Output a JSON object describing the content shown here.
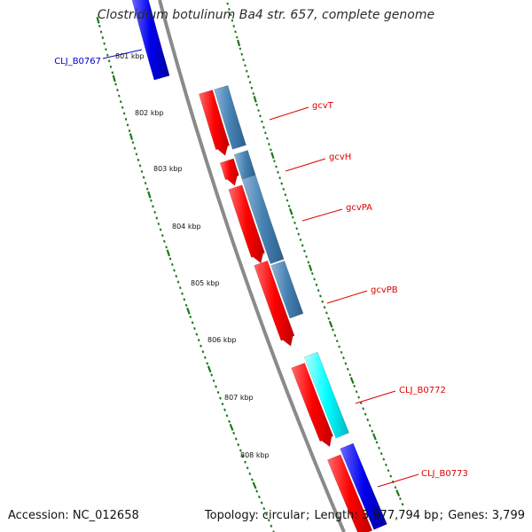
{
  "title": "Clostridium botulinum Ba4 str. 657, complete genome",
  "footer": {
    "accession": "Accession: NC_012658",
    "topology": "Topology: circular",
    "length": "Length: 3,977,794 bp",
    "genes": "Genes: 3,799"
  },
  "colors": {
    "backbone": "#8a8a8a",
    "tick": "#1a7a1a",
    "cds": "#ff0000",
    "gene_blue": "#0000ee",
    "gene_steel": "#4682b4",
    "gene_cyan": "#00ffff",
    "label_red": "#dd0000",
    "label_blue": "#0000cc"
  },
  "kbp_labels": [
    "801 kbp",
    "802 kbp",
    "803 kbp",
    "804 kbp",
    "805 kbp",
    "806 kbp",
    "807 kbp",
    "808 kbp"
  ],
  "genes": [
    {
      "id": "CLJ_B0767",
      "color": "gene_blue",
      "label_color": "label_blue"
    },
    {
      "id": "gcvT",
      "color": "gene_steel",
      "label_color": "label_red"
    },
    {
      "id": "gcvH",
      "color": "gene_steel",
      "label_color": "label_red"
    },
    {
      "id": "gcvPA",
      "color": "gene_steel",
      "label_color": "label_red"
    },
    {
      "id": "gcvPB",
      "color": "gene_steel",
      "label_color": "label_red"
    },
    {
      "id": "CLJ_B0772",
      "color": "gene_cyan",
      "label_color": "label_red"
    },
    {
      "id": "CLJ_B0773",
      "color": "gene_blue",
      "label_color": "label_red"
    }
  ]
}
